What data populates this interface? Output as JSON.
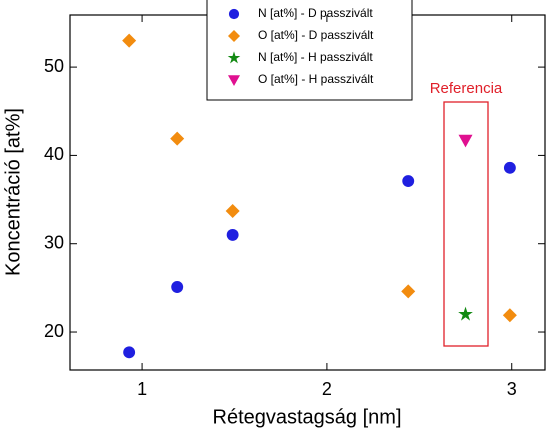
{
  "chart_data": {
    "type": "scatter",
    "xlabel": "Rétegvastagság [nm]",
    "ylabel": "Koncentráció [at%]",
    "annotation": "Referencia",
    "xlim": [
      0.61,
      3.18
    ],
    "xticks": [
      1,
      2,
      3
    ],
    "ylim": [
      15.7,
      55.9
    ],
    "yticks": [
      20,
      30,
      40,
      50
    ],
    "legend": "top",
    "series": [
      {
        "name": "N [at%] - D passzivált",
        "color": "#1f1fe0",
        "marker": "circle",
        "x": [
          0.93,
          1.19,
          1.49,
          2.44,
          2.99
        ],
        "values": [
          17.7,
          25.1,
          31.0,
          37.1,
          38.6
        ]
      },
      {
        "name": "O [at%] - D passzivált",
        "color": "#f28c0f",
        "marker": "diamond",
        "x": [
          0.93,
          1.19,
          1.49,
          2.44,
          2.99
        ],
        "values": [
          53.0,
          41.9,
          33.7,
          24.6,
          21.9
        ]
      },
      {
        "name": "N [at%] - H passzivált",
        "color": "#138a13",
        "marker": "star",
        "x": [
          2.75
        ],
        "values": [
          22.0
        ]
      },
      {
        "name": "O [at%] - H passzivált",
        "color": "#e01090",
        "marker": "triangle-down",
        "x": [
          2.75
        ],
        "values": [
          41.7
        ]
      }
    ]
  }
}
